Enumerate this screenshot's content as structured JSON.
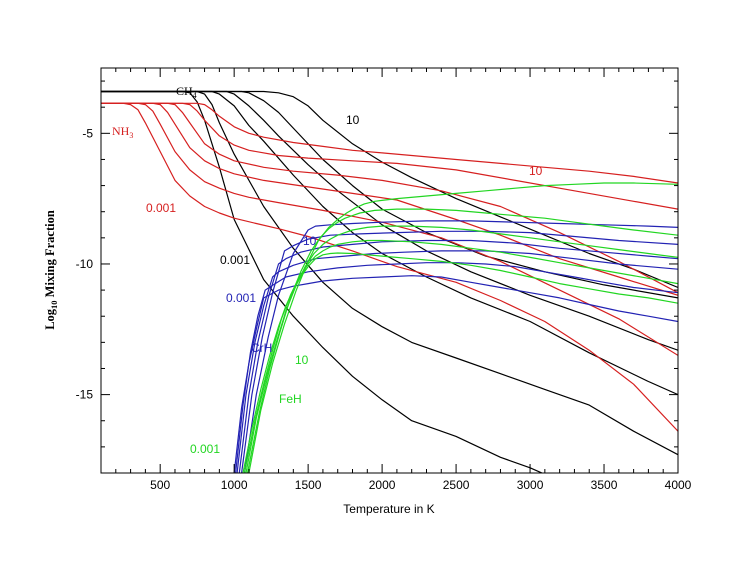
{
  "chart_data": {
    "type": "line",
    "title": "",
    "xlabel": "Temperature in K",
    "ylabel": "Log₁₀ Mixing Fraction",
    "ylabel_main": "Log",
    "ylabel_sub": "10",
    "ylabel_rest": " Mixing Fraction",
    "xlim": [
      100,
      4000
    ],
    "ylim": [
      -18,
      -2.5
    ],
    "xticks": [
      500,
      1000,
      1500,
      2000,
      2500,
      3000,
      3500,
      4000
    ],
    "xtick_labels": [
      "500",
      "1000",
      "1500",
      "2000",
      "2500",
      "3000",
      "3500",
      "4000"
    ],
    "yticks": [
      -5,
      -10,
      -15
    ],
    "ytick_labels": [
      "-5",
      "-10",
      "-15"
    ],
    "colors": {
      "CH4": "#000000",
      "NH3": "#d62020",
      "CrH": "#2323b4",
      "FeH": "#22d622"
    },
    "annotations": {
      "ch4_main": "CH",
      "ch4_sub": "4",
      "nh3_main": "NH",
      "nh3_sub": "3",
      "ch4_top": "10",
      "nh3_top": "10",
      "nh3_bottom": "0.001",
      "ch4_bottom": "0.001",
      "crh_top": "10",
      "crh_bottom": "0.001",
      "crh_name": "CrH",
      "feh_top": "10",
      "feh_name": "FeH",
      "feh_bottom": "0.001"
    },
    "series": [
      {
        "name": "CH4 0.001",
        "species": "CH4",
        "x": [
          100,
          650,
          700,
          750,
          800,
          900,
          1000,
          1200,
          1400,
          1600,
          1800,
          2000,
          2200,
          2500,
          2800,
          3000,
          3200
        ],
        "y": [
          -3.4,
          -3.4,
          -3.45,
          -3.8,
          -4.5,
          -6.3,
          -8.3,
          -10.6,
          -12,
          -13.2,
          -14.3,
          -15.2,
          -16,
          -16.6,
          -17.4,
          -17.8,
          -18.3
        ]
      },
      {
        "name": "CH4 2",
        "species": "CH4",
        "x": [
          100,
          750,
          800,
          850,
          900,
          1000,
          1200,
          1400,
          1600,
          1800,
          2000,
          2200,
          2500,
          2800,
          3100,
          3400,
          3700,
          4000
        ],
        "y": [
          -3.4,
          -3.4,
          -3.5,
          -3.9,
          -4.6,
          -5.8,
          -7.8,
          -9.4,
          -10.7,
          -11.7,
          -12.4,
          -13,
          -13.6,
          -14.2,
          -14.8,
          -15.4,
          -16.4,
          -17.3
        ]
      },
      {
        "name": "CH4 3",
        "species": "CH4",
        "x": [
          100,
          850,
          900,
          1000,
          1100,
          1200,
          1400,
          1600,
          1800,
          2000,
          2300,
          2600,
          3000,
          3400,
          3800,
          4000
        ],
        "y": [
          -3.4,
          -3.4,
          -3.5,
          -3.95,
          -4.7,
          -5.3,
          -6.6,
          -7.8,
          -8.8,
          -9.6,
          -10.5,
          -11.3,
          -12.2,
          -13.4,
          -14.5,
          -15
        ]
      },
      {
        "name": "CH4 4",
        "species": "CH4",
        "x": [
          100,
          950,
          1000,
          1100,
          1200,
          1300,
          1500,
          1700,
          2000,
          2300,
          2600,
          3000,
          3400,
          3800,
          4000
        ],
        "y": [
          -3.4,
          -3.4,
          -3.5,
          -3.95,
          -4.5,
          -5.1,
          -6.2,
          -7.2,
          -8.5,
          -9.5,
          -10.3,
          -11.2,
          -12,
          -12.9,
          -13.3
        ]
      },
      {
        "name": "CH4 5",
        "species": "CH4",
        "x": [
          100,
          1050,
          1100,
          1200,
          1300,
          1400,
          1600,
          1800,
          2000,
          2300,
          2700,
          3100,
          3500,
          4000
        ],
        "y": [
          -3.4,
          -3.4,
          -3.45,
          -3.75,
          -4.2,
          -4.8,
          -6,
          -7,
          -7.9,
          -8.8,
          -9.7,
          -10.3,
          -10.8,
          -11.3
        ]
      },
      {
        "name": "CH4 10",
        "species": "CH4",
        "x": [
          100,
          1200,
          1300,
          1400,
          1500,
          1600,
          1800,
          2000,
          2200,
          2500,
          2800,
          3100,
          3400,
          3700,
          4000
        ],
        "y": [
          -3.4,
          -3.4,
          -3.45,
          -3.6,
          -3.95,
          -4.5,
          -5.4,
          -6.1,
          -6.7,
          -7.5,
          -8.2,
          -8.9,
          -9.6,
          -10.2,
          -10.9
        ]
      },
      {
        "name": "NH3 0.001",
        "species": "NH3",
        "x": [
          100,
          250,
          300,
          350,
          400,
          500,
          600,
          700,
          800,
          900,
          1000,
          1150,
          1300,
          1500,
          1800,
          2100,
          2500,
          2800,
          3100,
          3400,
          3700,
          4000
        ],
        "y": [
          -3.85,
          -3.85,
          -3.9,
          -4.1,
          -4.6,
          -5.7,
          -6.8,
          -7.4,
          -7.8,
          -8.05,
          -8.25,
          -8.45,
          -8.65,
          -8.95,
          -9.5,
          -10.1,
          -10.7,
          -11.4,
          -12.2,
          -13.3,
          -14.6,
          -16.4
        ]
      },
      {
        "name": "NH3 2",
        "species": "NH3",
        "x": [
          100,
          350,
          400,
          450,
          500,
          600,
          700,
          800,
          900,
          1000,
          1100,
          1300,
          1600,
          2000,
          2400,
          2800,
          3200,
          3600,
          4000
        ],
        "y": [
          -3.85,
          -3.85,
          -3.9,
          -4.15,
          -4.65,
          -5.7,
          -6.4,
          -6.85,
          -7.1,
          -7.3,
          -7.45,
          -7.65,
          -7.95,
          -8.4,
          -9,
          -9.9,
          -11,
          -12.1,
          -13.5
        ]
      },
      {
        "name": "NH3 3",
        "species": "NH3",
        "x": [
          100,
          450,
          500,
          550,
          600,
          700,
          800,
          900,
          1000,
          1200,
          1500,
          1800,
          2100,
          2500,
          2800,
          3200,
          3600,
          4000
        ],
        "y": [
          -3.85,
          -3.85,
          -3.9,
          -4.2,
          -4.65,
          -5.55,
          -6.05,
          -6.35,
          -6.55,
          -6.8,
          -7.05,
          -7.3,
          -7.55,
          -8.3,
          -8.9,
          -9.8,
          -10.5,
          -11.2
        ]
      },
      {
        "name": "NH3 4",
        "species": "NH3",
        "x": [
          100,
          550,
          600,
          650,
          700,
          800,
          900,
          1000,
          1200,
          1400,
          1700,
          2000,
          2400,
          2800,
          3200,
          3600,
          4000
        ],
        "y": [
          -3.85,
          -3.85,
          -3.9,
          -4.2,
          -4.6,
          -5.4,
          -5.8,
          -6.05,
          -6.3,
          -6.45,
          -6.6,
          -6.8,
          -7.2,
          -7.8,
          -8.8,
          -9.9,
          -11.1
        ]
      },
      {
        "name": "NH3 5",
        "species": "NH3",
        "x": [
          100,
          650,
          700,
          750,
          800,
          900,
          1000,
          1100,
          1300,
          1500,
          1800,
          2100,
          2500,
          2900,
          3300,
          3700,
          4000
        ],
        "y": [
          -3.85,
          -3.85,
          -3.9,
          -4.15,
          -4.5,
          -5.1,
          -5.45,
          -5.65,
          -5.85,
          -5.95,
          -6.05,
          -6.15,
          -6.4,
          -6.8,
          -7.2,
          -7.6,
          -7.9
        ]
      },
      {
        "name": "NH3 10",
        "species": "NH3",
        "x": [
          100,
          750,
          800,
          850,
          900,
          1000,
          1100,
          1200,
          1400,
          1600,
          1800,
          2000,
          2200,
          2500,
          2800,
          3100,
          3400,
          3700,
          4000
        ],
        "y": [
          -3.85,
          -3.85,
          -3.9,
          -4.1,
          -4.35,
          -4.75,
          -5,
          -5.15,
          -5.35,
          -5.5,
          -5.65,
          -5.75,
          -5.85,
          -6,
          -6.15,
          -6.3,
          -6.45,
          -6.65,
          -6.9
        ]
      },
      {
        "name": "CrH 0.001",
        "species": "CrH",
        "x": [
          1000,
          1050,
          1100,
          1150,
          1200,
          1300,
          1400,
          1500,
          1600,
          1700,
          1800,
          2000,
          2200,
          2400,
          2600,
          2800,
          3000,
          3200,
          3400,
          3600,
          3800,
          4000
        ],
        "y": [
          -18,
          -15.5,
          -13.8,
          -12.5,
          -11.3,
          -11,
          -10.85,
          -10.75,
          -10.65,
          -10.6,
          -10.55,
          -10.5,
          -10.45,
          -10.5,
          -10.7,
          -10.9,
          -11.1,
          -11.3,
          -11.55,
          -11.8,
          -12,
          -12.2
        ]
      },
      {
        "name": "CrH 2",
        "species": "CrH",
        "x": [
          1010,
          1060,
          1110,
          1160,
          1210,
          1250,
          1350,
          1500,
          1700,
          1900,
          2100,
          2300,
          2500,
          2700,
          2900,
          3100,
          3300,
          3500,
          3700,
          4000
        ],
        "y": [
          -18,
          -15.4,
          -13.4,
          -12,
          -11,
          -10.85,
          -10.5,
          -10.3,
          -10.15,
          -10.05,
          -10,
          -9.95,
          -9.95,
          -10,
          -10.1,
          -10.3,
          -10.5,
          -10.7,
          -10.9,
          -11.1
        ]
      },
      {
        "name": "CrH 3",
        "species": "CrH",
        "x": [
          1020,
          1080,
          1140,
          1200,
          1260,
          1300,
          1400,
          1550,
          1750,
          1950,
          2150,
          2400,
          2700,
          3000,
          3300,
          3600,
          4000
        ],
        "y": [
          -18,
          -15,
          -13,
          -11.6,
          -10.5,
          -10.3,
          -10.05,
          -9.8,
          -9.7,
          -9.6,
          -9.55,
          -9.5,
          -9.5,
          -9.6,
          -9.8,
          -10,
          -10.2
        ]
      },
      {
        "name": "CrH 4",
        "species": "CrH",
        "x": [
          1035,
          1100,
          1160,
          1230,
          1300,
          1350,
          1450,
          1600,
          1800,
          2000,
          2300,
          2600,
          2900,
          3200,
          3500,
          3800,
          4000
        ],
        "y": [
          -18,
          -15,
          -13,
          -11.3,
          -10,
          -9.8,
          -9.55,
          -9.35,
          -9.25,
          -9.15,
          -9.1,
          -9.1,
          -9.2,
          -9.4,
          -9.55,
          -9.7,
          -9.8
        ]
      },
      {
        "name": "CrH 5",
        "species": "CrH",
        "x": [
          1050,
          1120,
          1190,
          1260,
          1340,
          1400,
          1500,
          1650,
          1850,
          2100,
          2400,
          2700,
          3000,
          3300,
          3600,
          4000
        ],
        "y": [
          -18,
          -15,
          -12.8,
          -11.1,
          -9.5,
          -9.3,
          -9.05,
          -8.9,
          -8.85,
          -8.8,
          -8.75,
          -8.75,
          -8.8,
          -8.95,
          -9.1,
          -9.25
        ]
      },
      {
        "name": "CrH 10",
        "species": "CrH",
        "x": [
          1070,
          1150,
          1230,
          1300,
          1400,
          1500,
          1550,
          1650,
          1800,
          2000,
          2300,
          2600,
          2900,
          3200,
          3500,
          3800,
          4000
        ],
        "y": [
          -18,
          -15,
          -12.8,
          -11.2,
          -9.6,
          -8.7,
          -8.55,
          -8.5,
          -8.45,
          -8.4,
          -8.35,
          -8.35,
          -8.4,
          -8.45,
          -8.5,
          -8.55,
          -8.6
        ]
      },
      {
        "name": "FeH 0.001",
        "species": "FeH",
        "x": [
          1060,
          1120,
          1180,
          1240,
          1300,
          1350,
          1400,
          1450,
          1500,
          1550,
          1600,
          1650,
          1700,
          1800,
          1900,
          2000,
          2200,
          2400,
          2600,
          2800,
          3000,
          3200,
          3400,
          3600,
          3800,
          4000
        ],
        "y": [
          -18,
          -16.3,
          -14.8,
          -13.5,
          -12.4,
          -11.6,
          -11,
          -10.5,
          -10.1,
          -9.8,
          -9.65,
          -9.6,
          -9.58,
          -9.6,
          -9.65,
          -9.7,
          -9.8,
          -9.9,
          -10.05,
          -10.25,
          -10.5,
          -10.75,
          -10.95,
          -11.15,
          -11.3,
          -11.5
        ]
      },
      {
        "name": "FeH 2",
        "species": "FeH",
        "x": [
          1070,
          1140,
          1200,
          1260,
          1320,
          1380,
          1440,
          1500,
          1550,
          1600,
          1650,
          1700,
          1800,
          1900,
          2000,
          2200,
          2400,
          2600,
          2800,
          3000,
          3200,
          3400,
          3600,
          3800,
          4000
        ],
        "y": [
          -18,
          -16,
          -14.6,
          -13.3,
          -12.1,
          -11.2,
          -10.5,
          -10,
          -9.7,
          -9.5,
          -9.35,
          -9.25,
          -9.15,
          -9.1,
          -9.1,
          -9.15,
          -9.25,
          -9.4,
          -9.55,
          -9.75,
          -9.95,
          -10.15,
          -10.35,
          -10.55,
          -10.75
        ]
      },
      {
        "name": "FeH 3",
        "species": "FeH",
        "x": [
          1080,
          1150,
          1220,
          1290,
          1350,
          1420,
          1480,
          1540,
          1600,
          1650,
          1700,
          1750,
          1800,
          1900,
          2000,
          2200,
          2400,
          2600,
          2800,
          3000,
          3200,
          3400,
          3600,
          3800,
          4000
        ],
        "y": [
          -18,
          -15.9,
          -14.3,
          -12.9,
          -11.8,
          -10.8,
          -10.1,
          -9.6,
          -9.25,
          -9.05,
          -8.9,
          -8.8,
          -8.7,
          -8.6,
          -8.55,
          -8.55,
          -8.6,
          -8.7,
          -8.85,
          -9,
          -9.15,
          -9.3,
          -9.45,
          -9.6,
          -9.75
        ]
      },
      {
        "name": "FeH 4",
        "species": "FeH",
        "x": [
          1090,
          1170,
          1240,
          1310,
          1380,
          1450,
          1520,
          1580,
          1640,
          1700,
          1750,
          1800,
          1850,
          1950,
          2100,
          2300,
          2500,
          2700,
          2900,
          3100,
          3300,
          3500,
          3700,
          4000
        ],
        "y": [
          -18,
          -15.7,
          -14,
          -12.6,
          -11.3,
          -10.3,
          -9.5,
          -9,
          -8.65,
          -8.4,
          -8.25,
          -8.15,
          -8.05,
          -7.95,
          -7.9,
          -7.9,
          -7.95,
          -8.05,
          -8.15,
          -8.25,
          -8.4,
          -8.55,
          -8.7,
          -8.9
        ]
      },
      {
        "name": "FeH 10",
        "species": "FeH",
        "x": [
          1100,
          1180,
          1260,
          1340,
          1420,
          1500,
          1570,
          1640,
          1700,
          1760,
          1820,
          1880,
          1950,
          2100,
          2300,
          2500,
          2700,
          2900,
          3100,
          3300,
          3500,
          3700,
          4000
        ],
        "y": [
          -18,
          -15.6,
          -13.8,
          -12.3,
          -11,
          -9.9,
          -9.1,
          -8.6,
          -8.3,
          -8.05,
          -7.85,
          -7.7,
          -7.6,
          -7.5,
          -7.4,
          -7.3,
          -7.2,
          -7.1,
          -7.0,
          -6.95,
          -6.9,
          -6.9,
          -6.95
        ]
      }
    ]
  }
}
